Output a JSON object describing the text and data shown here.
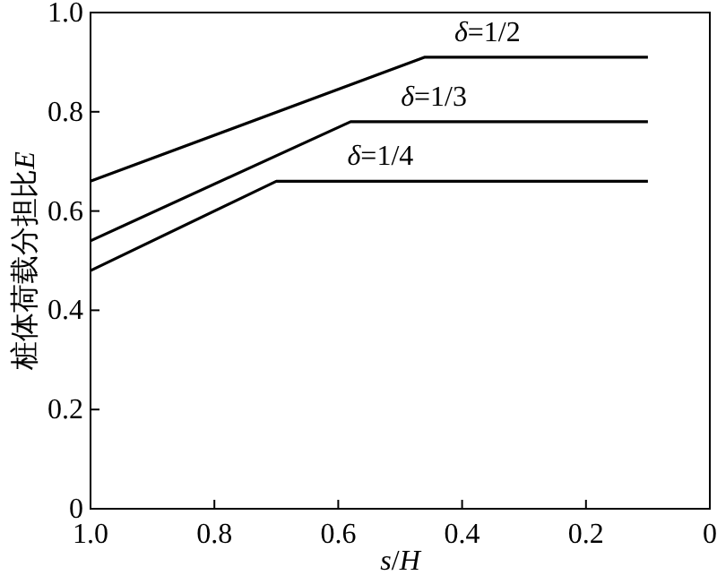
{
  "chart_data": {
    "type": "line",
    "xlabel": "s/H",
    "ylabel": "桩体荷载分担比E",
    "xlim": [
      1,
      0
    ],
    "ylim": [
      0,
      1
    ],
    "xticks": [
      {
        "value": 1,
        "label": "1.0"
      },
      0.8,
      0.6,
      0.4,
      0.2,
      0
    ],
    "yticks": [
      0,
      0.2,
      0.4,
      0.6,
      0.8,
      {
        "value": 1,
        "label": "1.0"
      }
    ],
    "series": [
      {
        "name": "δ=1/2",
        "color": "#000000",
        "x": [
          1,
          0.46,
          0.1
        ],
        "values": [
          0.66,
          0.91,
          0.91
        ]
      },
      {
        "name": "δ=1/3",
        "color": "#000000",
        "x": [
          1,
          0.58,
          0.1
        ],
        "values": [
          0.54,
          0.78,
          0.78
        ]
      },
      {
        "name": "δ=1/4",
        "color": "#000000",
        "x": [
          1,
          0.7,
          0.1
        ],
        "values": [
          0.48,
          0.66,
          0.66
        ]
      }
    ]
  }
}
